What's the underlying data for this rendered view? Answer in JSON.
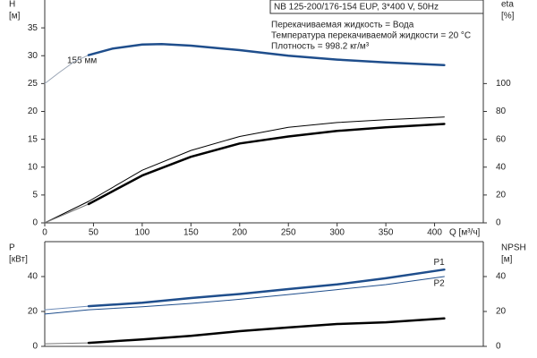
{
  "chart_data": [
    {
      "type": "line",
      "title": "NB 125-200/176-154 EUP, 3*400 V, 50Hz",
      "annotations": [
        "Перекачиваемая жидкость = Вода",
        "Температура перекачиваемой жидкости = 20 °C",
        "Плотность = 998.2 кг/м³",
        "155 мм"
      ],
      "ylabel": [
        "H",
        "[м]"
      ],
      "y2label": [
        "eta",
        "[%]"
      ],
      "xlabel": "Q [м³/ч]",
      "xlim": [
        0,
        450
      ],
      "xticks": [
        0,
        50,
        100,
        150,
        200,
        250,
        300,
        350,
        400
      ],
      "ylim": [
        0,
        40
      ],
      "yticks": [
        0,
        5,
        10,
        15,
        20,
        25,
        30,
        35
      ],
      "y2lim": [
        0,
        160
      ],
      "y2ticks": [
        0,
        20,
        40,
        60,
        80,
        100
      ],
      "series": [
        {
          "color": "#9aa5b5",
          "width": 1,
          "x": [
            0,
            15,
            30,
            45
          ],
          "values": [
            25,
            27,
            28.9,
            30.1
          ]
        },
        {
          "color": "#1f4e8c",
          "width": 2.5,
          "x": [
            45,
            70,
            100,
            120,
            150,
            200,
            250,
            300,
            350,
            410
          ],
          "values": [
            30.1,
            31.3,
            32,
            32.1,
            31.8,
            31,
            30,
            29.3,
            28.8,
            28.3
          ]
        },
        {
          "color": "#000000",
          "width": 1,
          "axis": "y2",
          "x": [
            0,
            45,
            100,
            150,
            200,
            250,
            300,
            350,
            410
          ],
          "values": [
            0,
            15.4,
            37.8,
            52,
            62,
            68.6,
            72,
            74,
            76
          ]
        },
        {
          "color": "#777777",
          "width": 1,
          "axis": "y2",
          "x": [
            0,
            45
          ],
          "values": [
            0,
            13.5
          ]
        },
        {
          "color": "#000000",
          "width": 2.5,
          "axis": "y2",
          "x": [
            45,
            100,
            150,
            200,
            250,
            300,
            350,
            410
          ],
          "values": [
            13.5,
            34,
            47.4,
            57,
            62,
            66,
            68.6,
            71
          ]
        }
      ]
    },
    {
      "type": "line",
      "ylabel": [
        "P",
        "[кВт]"
      ],
      "y2label": [
        "NPSH",
        "[м]"
      ],
      "xlim": [
        0,
        450
      ],
      "ylim": [
        0,
        60
      ],
      "yticks": [
        0,
        20,
        40
      ],
      "y2lim": [
        0,
        60
      ],
      "y2ticks": [
        0,
        20,
        40
      ],
      "series": [
        {
          "color": "#6f8db8",
          "width": 1,
          "x": [
            0,
            45
          ],
          "values": [
            21,
            23
          ]
        },
        {
          "name": "P1",
          "color": "#1f4e8c",
          "width": 2.5,
          "x": [
            45,
            100,
            150,
            200,
            250,
            300,
            350,
            410
          ],
          "values": [
            23,
            25,
            27.7,
            30,
            32.8,
            35.5,
            39,
            44
          ]
        },
        {
          "name": "P2",
          "color": "#1f4e8c",
          "width": 1,
          "x": [
            0,
            45,
            100,
            150,
            200,
            250,
            300,
            350,
            410
          ],
          "values": [
            18.5,
            21,
            22.7,
            24.6,
            27,
            29.7,
            32.5,
            35.4,
            40
          ]
        },
        {
          "color": "#777777",
          "width": 1,
          "axis": "y2",
          "x": [
            0,
            45
          ],
          "values": [
            1.5,
            2
          ]
        },
        {
          "color": "#000000",
          "width": 2.5,
          "axis": "y2",
          "x": [
            45,
            100,
            150,
            200,
            250,
            300,
            350,
            410
          ],
          "values": [
            2,
            4,
            6,
            8.7,
            10.8,
            12.8,
            13.8,
            16
          ]
        }
      ]
    }
  ]
}
